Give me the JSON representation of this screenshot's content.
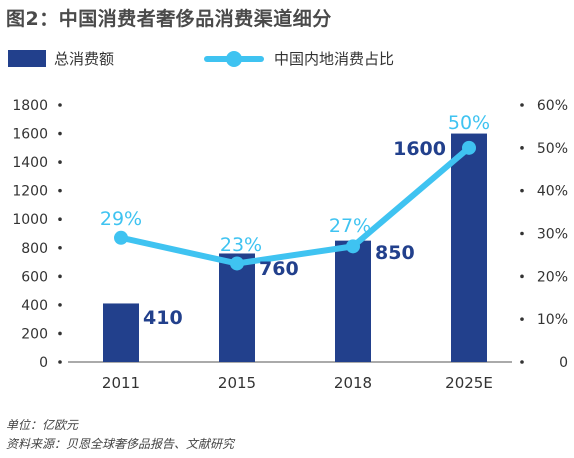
{
  "title": "图2：中国消费者奢侈品消费渠道细分",
  "legend": {
    "bar_label": "总消费额",
    "line_label": "中国内地消费占比"
  },
  "footer": {
    "unit": "单位：亿欧元",
    "source": "资料来源：贝恩全球奢侈品报告、文献研究"
  },
  "colors": {
    "bar": "#22408c",
    "line": "#3fc3f1",
    "bar_label": "#22408c",
    "line_label": "#3fc3f1"
  },
  "chart_data": {
    "type": "bar",
    "categories": [
      "2011",
      "2015",
      "2018",
      "2025E"
    ],
    "series": [
      {
        "name": "总消费额",
        "type": "bar",
        "axis": "left",
        "values": [
          410,
          760,
          850,
          1600
        ],
        "labels": [
          "410",
          "760",
          "850",
          "1600"
        ]
      },
      {
        "name": "中国内地消费占比",
        "type": "line",
        "axis": "right",
        "values": [
          29,
          23,
          27,
          50
        ],
        "labels": [
          "29%",
          "23%",
          "27%",
          "50%"
        ]
      }
    ],
    "y_left": {
      "ylim": [
        0,
        1800
      ],
      "ticks": [
        "0",
        "200",
        "400",
        "600",
        "800",
        "1000",
        "1200",
        "1400",
        "1600",
        "1800"
      ]
    },
    "y_right": {
      "ylim": [
        0,
        60
      ],
      "ticks": [
        "0",
        "10%",
        "20%",
        "30%",
        "40%",
        "50%",
        "60%"
      ]
    },
    "grid": false,
    "legend_position": "top"
  }
}
